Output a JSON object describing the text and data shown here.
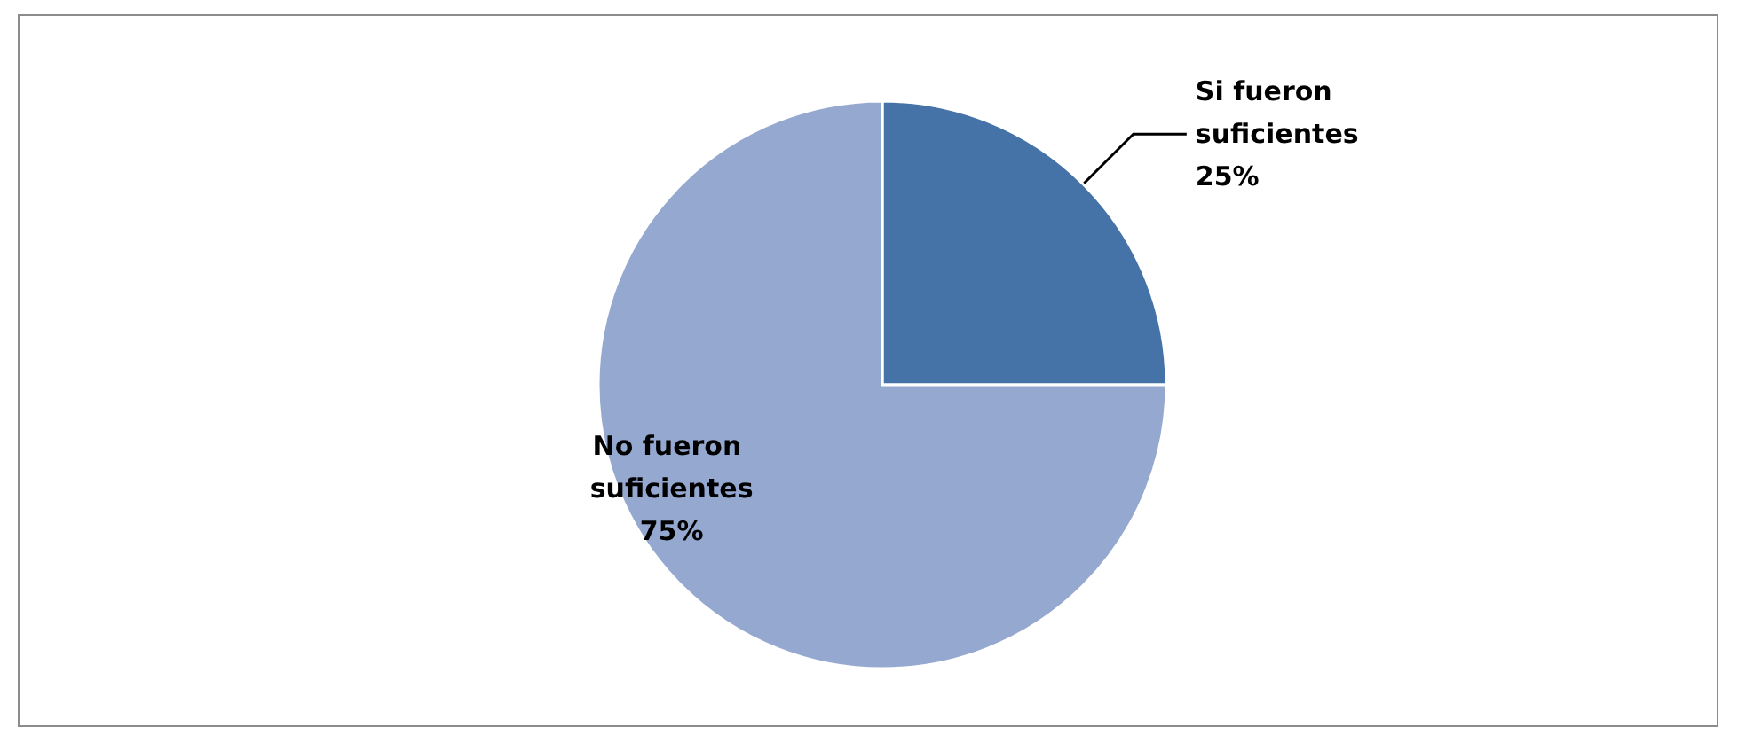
{
  "chart_data": {
    "type": "pie",
    "categories": [
      "Si fueron suficientes",
      "No fueron suficientes"
    ],
    "values": [
      25,
      75
    ],
    "colors": [
      "#4572a7",
      "#95a9d0"
    ],
    "value_labels": [
      "25%",
      "75%"
    ],
    "legend": false
  }
}
